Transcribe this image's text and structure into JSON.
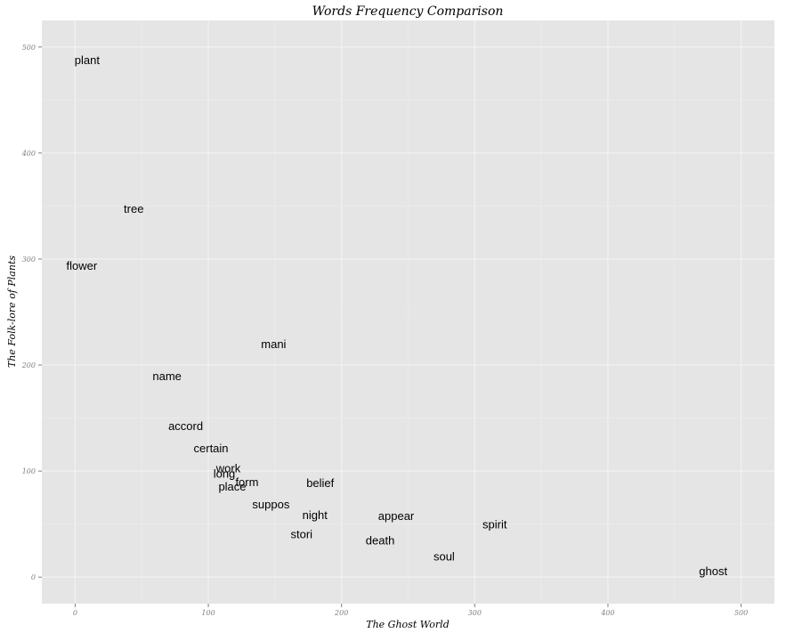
{
  "chart_data": {
    "type": "scatter",
    "title": "Words Frequency Comparison",
    "xlabel": "The Ghost World",
    "ylabel": "The Folk-lore of Plants",
    "xlim": [
      -25,
      525
    ],
    "ylim": [
      -25,
      525
    ],
    "xticks": [
      0,
      100,
      200,
      300,
      400,
      500
    ],
    "yticks": [
      0,
      100,
      200,
      300,
      400,
      500
    ],
    "grid": true,
    "panel_color": "#e5e5e5",
    "points": [
      {
        "label": "plant",
        "x": 9,
        "y": 488
      },
      {
        "label": "tree",
        "x": 44,
        "y": 348
      },
      {
        "label": "flower",
        "x": 5,
        "y": 294
      },
      {
        "label": "mani",
        "x": 149,
        "y": 220
      },
      {
        "label": "name",
        "x": 69,
        "y": 190
      },
      {
        "label": "accord",
        "x": 83,
        "y": 143
      },
      {
        "label": "certain",
        "x": 102,
        "y": 122
      },
      {
        "label": "work",
        "x": 115,
        "y": 103
      },
      {
        "label": "long",
        "x": 112,
        "y": 98
      },
      {
        "label": "form",
        "x": 129,
        "y": 90
      },
      {
        "label": "place",
        "x": 118,
        "y": 86
      },
      {
        "label": "belief",
        "x": 184,
        "y": 89
      },
      {
        "label": "suppos",
        "x": 147,
        "y": 69
      },
      {
        "label": "night",
        "x": 180,
        "y": 59
      },
      {
        "label": "appear",
        "x": 241,
        "y": 58
      },
      {
        "label": "spirit",
        "x": 315,
        "y": 50
      },
      {
        "label": "stori",
        "x": 170,
        "y": 41
      },
      {
        "label": "death",
        "x": 229,
        "y": 35
      },
      {
        "label": "soul",
        "x": 277,
        "y": 20
      },
      {
        "label": "ghost",
        "x": 479,
        "y": 6
      }
    ]
  }
}
